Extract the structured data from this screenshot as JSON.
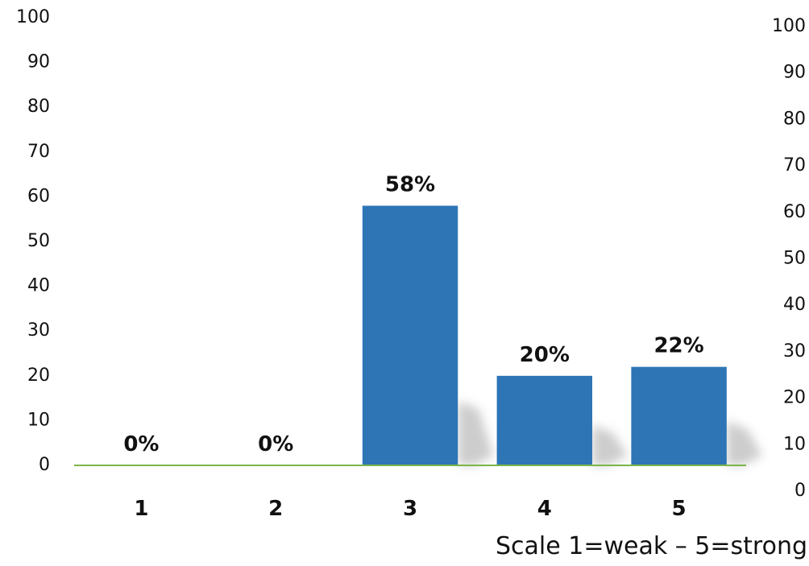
{
  "chart_data": {
    "type": "bar",
    "categories": [
      "1",
      "2",
      "3",
      "4",
      "5"
    ],
    "values": [
      0,
      0,
      58,
      20,
      22
    ],
    "data_labels": [
      "0%",
      "0%",
      "58%",
      "20%",
      "22%"
    ],
    "title": "",
    "xlabel": "Scale 1=weak – 5=strong",
    "ylabel": "",
    "ylim": [
      0,
      100
    ],
    "yticks": [
      0,
      10,
      20,
      30,
      40,
      50,
      60,
      70,
      80,
      90,
      100
    ],
    "secondary_ylim": [
      0,
      100
    ],
    "secondary_yticks": [
      0,
      10,
      20,
      30,
      40,
      50,
      60,
      70,
      80,
      90,
      100
    ],
    "grid": false,
    "legend": "none",
    "colors": {
      "bar": "#2e75b6",
      "baseline": "#7ab648",
      "shadow": "#c8c8c8"
    }
  }
}
